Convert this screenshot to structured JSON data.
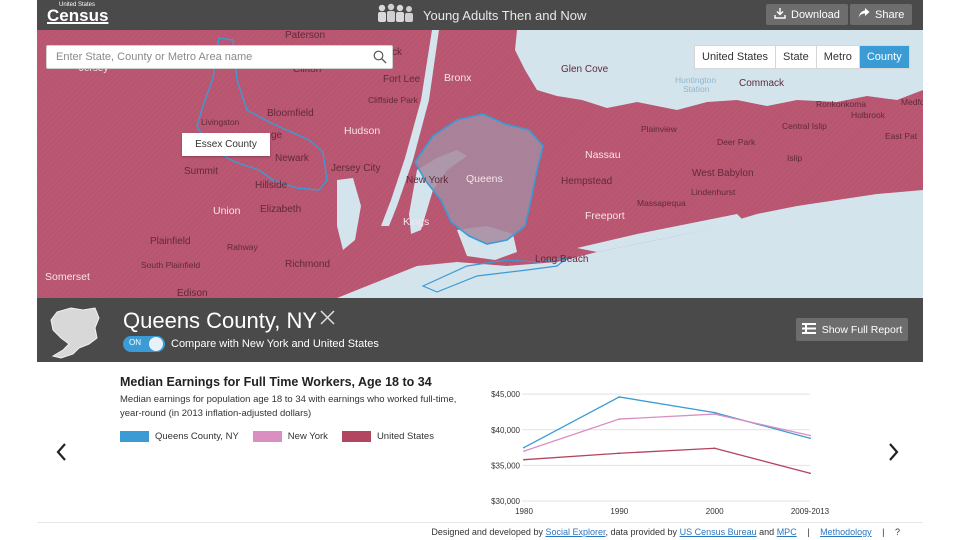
{
  "header": {
    "logo_small": "United States",
    "logo_big": "Census",
    "app_title": "Young Adults Then and Now",
    "download_label": "Download",
    "share_label": "Share"
  },
  "search": {
    "placeholder": "Enter State, County or Metro Area name"
  },
  "geo_levels": {
    "options": [
      "United States",
      "State",
      "Metro",
      "County"
    ],
    "selected": "County"
  },
  "map": {
    "tooltip": "Essex County",
    "highlight_color": "#3a9bd5",
    "land_color": "#b85570",
    "water_color": "#d4e4ec",
    "labels": {
      "paterson": "Paterson",
      "passaic": "Clifton",
      "jersey": "Jersey",
      "fortlee": "Fort Lee",
      "bronx": "Bronx",
      "glencove": "Glen Cove",
      "huntington": "Huntington",
      "huntington2": "Station",
      "commack": "Commack",
      "ronkonkoma": "Ronkonkoma",
      "holbrook": "Holbrook",
      "medford": "Medfo",
      "cliffside": "Cliffside Park",
      "bloomfield": "Bloomfield",
      "livingston": "Livingston",
      "hudson": "Hudson",
      "plainview": "Plainview",
      "centralislip": "Central Islip",
      "eastpatchogue": "East Pat",
      "deerpark": "Deer Park",
      "nassau": "Nassau",
      "islip": "Islip",
      "newark": "Newark",
      "jerseycity": "Jersey City",
      "queens": "Queens",
      "summit": "Summit",
      "hillside": "Hillside",
      "newyork": "New York",
      "westbabylon": "West Babylon",
      "lindenhurst": "Lindenhurst",
      "hempstead": "Hempstead",
      "massapequa": "Massapequa",
      "union": "Union",
      "elizabeth": "Elizabeth",
      "freeport": "Freeport",
      "kings": "Kings",
      "plainfield": "Plainfield",
      "rahway": "Rahway",
      "southplainfield": "South Plainfield",
      "richmond": "Richmond",
      "longbeach": "Long Beach",
      "somerset": "Somerset",
      "edison": "Edison",
      "ck": "ck",
      "ge": "ge"
    }
  },
  "selection": {
    "title": "Queens County, NY",
    "toggle_label": "ON",
    "compare_text": "Compare with New York and United States",
    "report_button": "Show Full Report"
  },
  "panel": {
    "title": "Median Earnings for Full Time Workers, Age 18 to 34",
    "description": "Median earnings for population age 18 to 34 with earnings who worked full-time, year-round (in 2013 inflation-adjusted dollars)",
    "legend": [
      {
        "label": "Queens County, NY",
        "color": "#3a9bd5"
      },
      {
        "label": "New York",
        "color": "#d98fc0"
      },
      {
        "label": "United States",
        "color": "#b2455f"
      }
    ]
  },
  "chart_data": {
    "type": "line",
    "x": [
      "1980",
      "1990",
      "2000",
      "2009-2013"
    ],
    "yticks": [
      "$30,000",
      "$35,000",
      "$40,000",
      "$45,000"
    ],
    "ylim": [
      30000,
      46000
    ],
    "grid": true,
    "series": [
      {
        "name": "Queens County, NY",
        "color": "#3a9bd5",
        "values": [
          37500,
          44600,
          42400,
          38800
        ]
      },
      {
        "name": "New York",
        "color": "#d98fc0",
        "values": [
          37000,
          41500,
          42200,
          39200
        ]
      },
      {
        "name": "United States",
        "color": "#b2455f",
        "values": [
          35800,
          36700,
          37400,
          33900
        ]
      }
    ]
  },
  "footer": {
    "designed_prefix": "Designed and developed by",
    "social_explorer": "Social Explorer",
    "data_by": ", data provided by",
    "census_bureau": "US Census Bureau",
    "and": "and",
    "mpc": "MPC",
    "sep": "|",
    "methodology": "Methodology",
    "help": "?"
  }
}
